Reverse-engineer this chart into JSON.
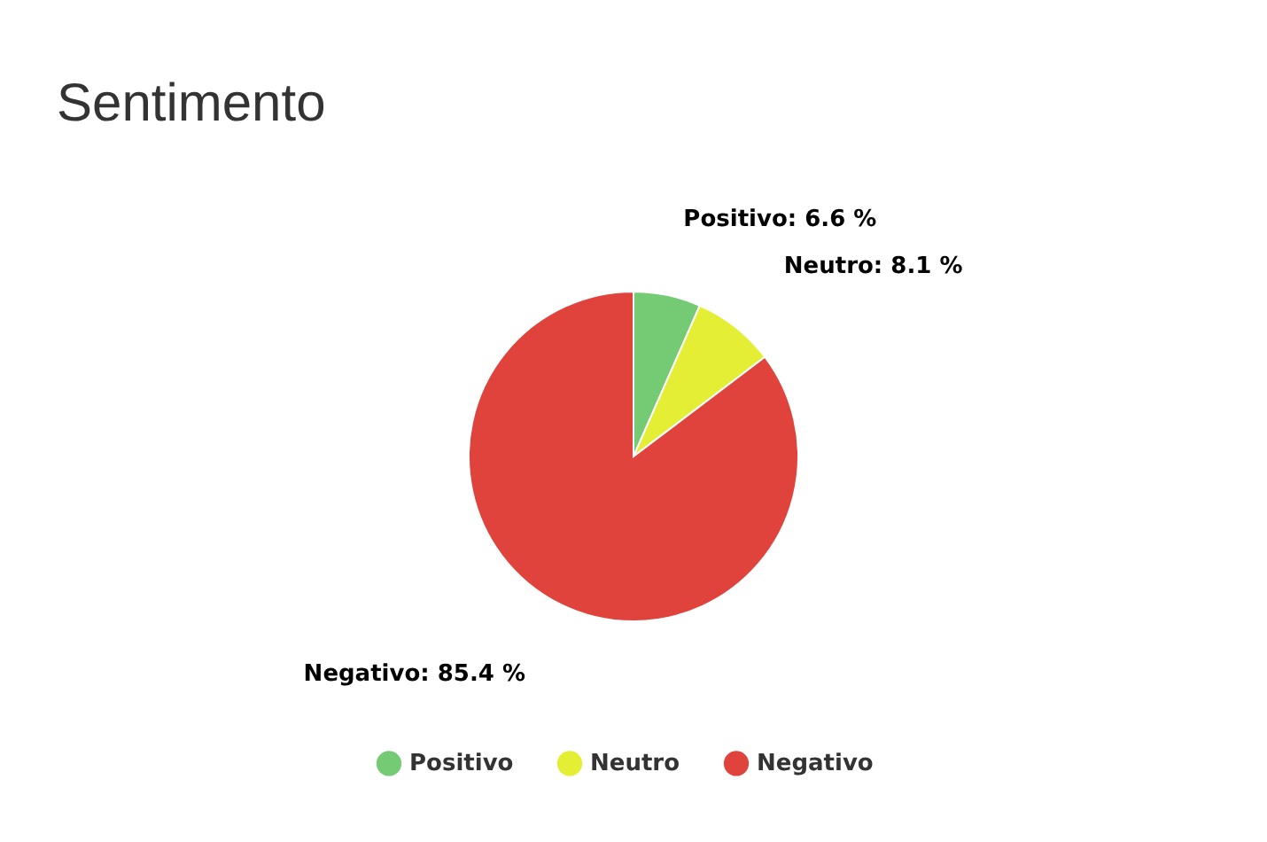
{
  "chart_data": {
    "type": "pie",
    "title": "Sentimento",
    "categories": [
      "Positivo",
      "Neutro",
      "Negativo"
    ],
    "values": [
      6.6,
      8.1,
      85.4
    ],
    "colors": [
      "#74cb74",
      "#e4ee34",
      "#df433b"
    ],
    "value_labels": [
      "Positivo: 6.6 %",
      "Neutro: 8.1 %",
      "Negativo: 85.4 %"
    ],
    "legend": "bottom"
  }
}
